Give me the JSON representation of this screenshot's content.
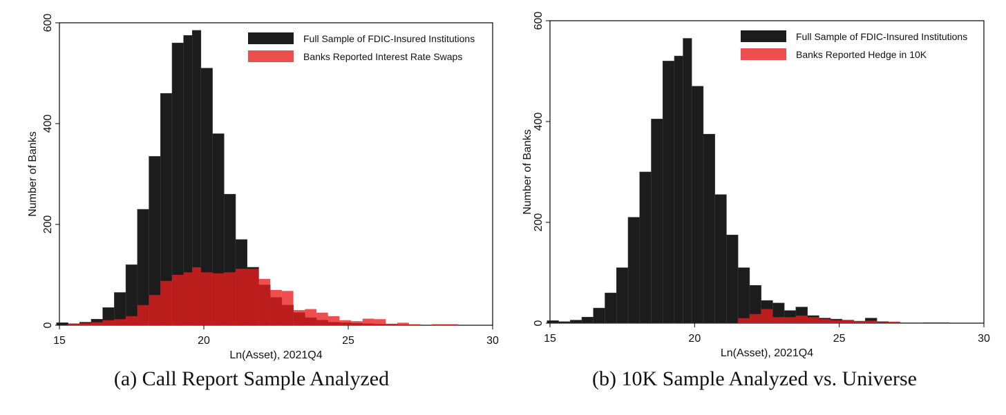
{
  "chart_data": [
    {
      "type": "bar",
      "caption": "(a) Call Report Sample Analyzed",
      "xlabel": "Ln(Asset), 2021Q4",
      "ylabel": "Number of Banks",
      "xlim": [
        15,
        30
      ],
      "ylim": [
        0,
        600
      ],
      "xticks": [
        "15",
        "20",
        "25",
        "30"
      ],
      "yticks": [
        "0",
        "200",
        "400",
        "600"
      ],
      "legend_position": "top-right",
      "colors": {
        "full": "#1c1c1c",
        "subset": "#e81e1e"
      },
      "series": [
        {
          "name": "Full Sample of FDIC-Insured Institutions",
          "bins": [
            [
              14.9,
              15.3,
              5
            ],
            [
              15.3,
              15.7,
              3
            ],
            [
              15.7,
              16.1,
              6
            ],
            [
              16.1,
              16.5,
              12
            ],
            [
              16.5,
              16.9,
              35
            ],
            [
              16.9,
              17.3,
              65
            ],
            [
              17.3,
              17.7,
              120
            ],
            [
              17.7,
              18.1,
              230
            ],
            [
              18.1,
              18.5,
              335
            ],
            [
              18.5,
              18.9,
              460
            ],
            [
              18.9,
              19.3,
              560
            ],
            [
              19.3,
              19.6,
              575
            ],
            [
              19.6,
              19.9,
              585
            ],
            [
              19.9,
              20.3,
              510
            ],
            [
              20.3,
              20.7,
              380
            ],
            [
              20.7,
              21.1,
              260
            ],
            [
              21.1,
              21.5,
              170
            ],
            [
              21.5,
              21.9,
              115
            ],
            [
              21.9,
              22.3,
              80
            ],
            [
              22.3,
              22.7,
              55
            ],
            [
              22.7,
              23.1,
              40
            ],
            [
              23.1,
              23.5,
              25
            ],
            [
              23.5,
              23.9,
              15
            ],
            [
              23.9,
              24.3,
              10
            ],
            [
              24.3,
              24.7,
              6
            ],
            [
              24.7,
              25.1,
              5
            ],
            [
              25.1,
              25.5,
              4
            ],
            [
              25.5,
              25.9,
              3
            ],
            [
              25.9,
              26.3,
              2
            ],
            [
              26.3,
              26.7,
              2
            ],
            [
              26.7,
              27.1,
              1
            ],
            [
              27.1,
              27.5,
              1
            ],
            [
              27.9,
              28.8,
              1
            ]
          ]
        },
        {
          "name": "Banks Reported Interest Rate Swaps",
          "bins": [
            [
              15.3,
              15.7,
              3
            ],
            [
              15.7,
              16.1,
              4
            ],
            [
              16.1,
              16.5,
              6
            ],
            [
              16.5,
              16.9,
              10
            ],
            [
              16.9,
              17.3,
              12
            ],
            [
              17.3,
              17.7,
              18
            ],
            [
              17.7,
              18.1,
              40
            ],
            [
              18.1,
              18.5,
              60
            ],
            [
              18.5,
              18.9,
              88
            ],
            [
              18.9,
              19.3,
              100
            ],
            [
              19.3,
              19.6,
              105
            ],
            [
              19.6,
              19.9,
              115
            ],
            [
              19.9,
              20.3,
              105
            ],
            [
              20.3,
              20.7,
              103
            ],
            [
              20.7,
              21.1,
              105
            ],
            [
              21.1,
              21.5,
              112
            ],
            [
              21.5,
              21.9,
              112
            ],
            [
              21.9,
              22.3,
              92
            ],
            [
              22.3,
              22.7,
              70
            ],
            [
              22.7,
              23.1,
              68
            ],
            [
              23.1,
              23.5,
              30
            ],
            [
              23.5,
              23.9,
              32
            ],
            [
              23.9,
              24.3,
              25
            ],
            [
              24.3,
              24.7,
              18
            ],
            [
              24.7,
              25.1,
              10
            ],
            [
              25.1,
              25.5,
              8
            ],
            [
              25.5,
              25.9,
              13
            ],
            [
              25.9,
              26.3,
              12
            ],
            [
              26.3,
              26.7,
              3
            ],
            [
              26.7,
              27.1,
              5
            ],
            [
              27.1,
              27.5,
              2
            ],
            [
              27.9,
              28.8,
              2
            ]
          ]
        }
      ]
    },
    {
      "type": "bar",
      "caption": "(b) 10K Sample Analyzed vs. Universe",
      "xlabel": "Ln(Asset), 2021Q4",
      "ylabel": "Number of Banks",
      "xlim": [
        15,
        30
      ],
      "ylim": [
        0,
        600
      ],
      "xticks": [
        "15",
        "20",
        "25",
        "30"
      ],
      "yticks": [
        "0",
        "200",
        "400",
        "600"
      ],
      "legend_position": "top-right",
      "colors": {
        "full": "#1c1c1c",
        "subset": "#e81e1e"
      },
      "series": [
        {
          "name": "Full Sample of FDIC-Insured Institutions",
          "bins": [
            [
              14.9,
              15.3,
              5
            ],
            [
              15.3,
              15.7,
              3
            ],
            [
              15.7,
              16.1,
              6
            ],
            [
              16.1,
              16.5,
              12
            ],
            [
              16.5,
              16.9,
              30
            ],
            [
              16.9,
              17.3,
              60
            ],
            [
              17.3,
              17.7,
              110
            ],
            [
              17.7,
              18.1,
              210
            ],
            [
              18.1,
              18.5,
              300
            ],
            [
              18.5,
              18.9,
              405
            ],
            [
              18.9,
              19.3,
              520
            ],
            [
              19.3,
              19.6,
              530
            ],
            [
              19.6,
              19.9,
              565
            ],
            [
              19.9,
              20.3,
              470
            ],
            [
              20.3,
              20.7,
              375
            ],
            [
              20.7,
              21.1,
              255
            ],
            [
              21.1,
              21.5,
              175
            ],
            [
              21.5,
              21.9,
              110
            ],
            [
              21.9,
              22.3,
              75
            ],
            [
              22.3,
              22.7,
              45
            ],
            [
              22.7,
              23.1,
              40
            ],
            [
              23.1,
              23.5,
              25
            ],
            [
              23.5,
              23.9,
              32
            ],
            [
              23.9,
              24.3,
              15
            ],
            [
              24.3,
              24.7,
              10
            ],
            [
              24.7,
              25.1,
              8
            ],
            [
              25.1,
              25.5,
              6
            ],
            [
              25.5,
              25.9,
              4
            ],
            [
              25.9,
              26.3,
              10
            ],
            [
              26.3,
              26.7,
              3
            ],
            [
              26.7,
              27.1,
              2
            ],
            [
              27.1,
              27.5,
              1
            ],
            [
              27.5,
              27.9,
              1
            ],
            [
              27.9,
              28.8,
              1
            ]
          ]
        },
        {
          "name": "Banks Reported Hedge in 10K",
          "bins": [
            [
              21.5,
              21.9,
              10
            ],
            [
              21.9,
              22.3,
              18
            ],
            [
              22.3,
              22.7,
              28
            ],
            [
              22.7,
              23.1,
              12
            ],
            [
              23.1,
              23.5,
              12
            ],
            [
              23.5,
              23.9,
              15
            ],
            [
              23.9,
              24.3,
              12
            ],
            [
              24.3,
              24.7,
              8
            ],
            [
              24.7,
              25.1,
              6
            ],
            [
              25.1,
              25.5,
              6
            ],
            [
              25.5,
              25.9,
              4
            ],
            [
              25.9,
              26.3,
              5
            ],
            [
              26.3,
              26.7,
              2
            ],
            [
              26.7,
              27.1,
              3
            ],
            [
              27.1,
              27.5,
              1
            ],
            [
              27.5,
              27.9,
              1
            ]
          ]
        }
      ]
    }
  ]
}
